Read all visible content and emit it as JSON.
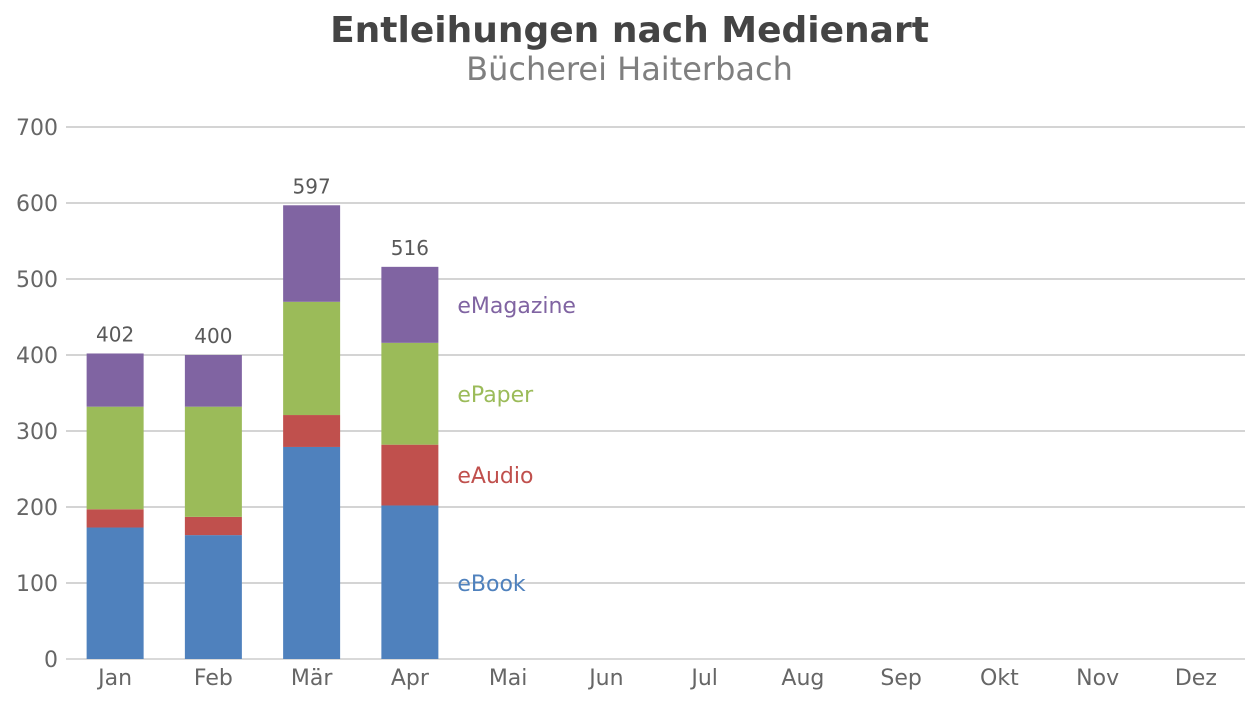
{
  "chart_data": {
    "type": "bar",
    "stacked": true,
    "title": "Entleihungen nach Medienart",
    "subtitle": "Bücherei Haiterbach",
    "xlabel": "",
    "ylabel": "",
    "ylim": [
      0,
      700
    ],
    "yticks": [
      0,
      100,
      200,
      300,
      400,
      500,
      600,
      700
    ],
    "grid": true,
    "legend": "inline-right",
    "categories": [
      "Jan",
      "Feb",
      "Mär",
      "Apr",
      "Mai",
      "Jun",
      "Jul",
      "Aug",
      "Sep",
      "Okt",
      "Nov",
      "Dez"
    ],
    "series": [
      {
        "name": "eBook",
        "color": "#4f81bd",
        "values": [
          173,
          163,
          279,
          202,
          null,
          null,
          null,
          null,
          null,
          null,
          null,
          null
        ]
      },
      {
        "name": "eAudio",
        "color": "#c0504d",
        "values": [
          24,
          24,
          42,
          80,
          null,
          null,
          null,
          null,
          null,
          null,
          null,
          null
        ]
      },
      {
        "name": "ePaper",
        "color": "#9bbb59",
        "values": [
          135,
          145,
          149,
          134,
          null,
          null,
          null,
          null,
          null,
          null,
          null,
          null
        ]
      },
      {
        "name": "eMagazine",
        "color": "#8064a2",
        "values": [
          70,
          68,
          127,
          100,
          null,
          null,
          null,
          null,
          null,
          null,
          null,
          null
        ]
      }
    ],
    "totals": [
      402,
      400,
      597,
      516,
      null,
      null,
      null,
      null,
      null,
      null,
      null,
      null
    ]
  }
}
